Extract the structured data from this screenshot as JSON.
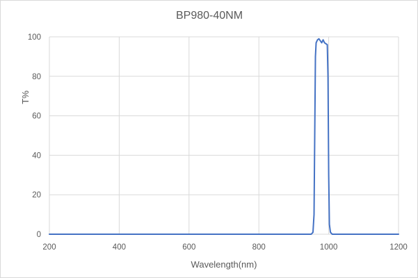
{
  "chart_data": {
    "type": "line",
    "title": "BP980-40NM",
    "xlabel": "Wavelength(nm)",
    "ylabel": "T%",
    "xlim": [
      200,
      1200
    ],
    "ylim": [
      0,
      100
    ],
    "x_ticks": [
      "200",
      "400",
      "600",
      "800",
      "1000",
      "1200"
    ],
    "y_ticks": [
      "0",
      "20",
      "40",
      "60",
      "80",
      "100"
    ],
    "grid": true,
    "legend": "none",
    "series": [
      {
        "color": "#4472c4",
        "x": [
          200,
          400,
          600,
          800,
          900,
          950,
          955,
          958,
          960,
          962,
          964,
          968,
          972,
          976,
          980,
          984,
          988,
          992,
          996,
          998,
          1000,
          1002,
          1005,
          1010,
          1050,
          1200
        ],
        "y": [
          0,
          0,
          0,
          0,
          0,
          0,
          1,
          10,
          50,
          90,
          97,
          98.5,
          99,
          98,
          97,
          98.5,
          97,
          96.5,
          96,
          80,
          30,
          5,
          1,
          0,
          0,
          0
        ]
      }
    ]
  }
}
